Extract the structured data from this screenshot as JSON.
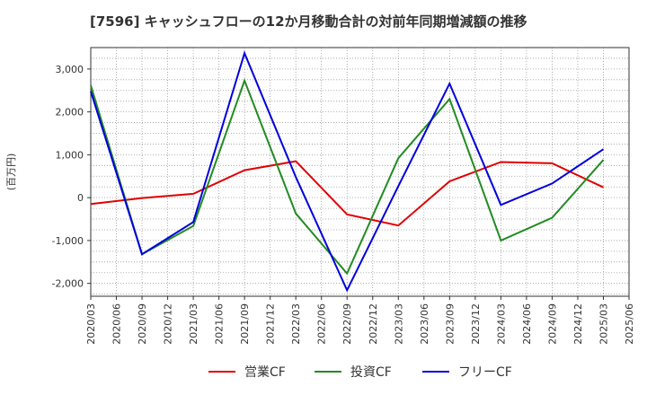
{
  "chart_data": {
    "type": "line",
    "title": "[7596]  キャッシュフローの12か月移動合計の対前年同期増減額の推移",
    "ylabel": "(百万円)",
    "xlabel": "",
    "ylim": [
      -2300,
      3500
    ],
    "yticks": [
      -2000,
      -1000,
      0,
      1000,
      2000,
      3000
    ],
    "ytick_labels": [
      "-2,000",
      "-1,000",
      "0",
      "1,000",
      "2,000",
      "3,000"
    ],
    "categories": [
      "2020/03",
      "2020/06",
      "2020/09",
      "2020/12",
      "2021/03",
      "2021/06",
      "2021/09",
      "2021/12",
      "2022/03",
      "2022/06",
      "2022/09",
      "2022/12",
      "2023/03",
      "2023/06",
      "2023/09",
      "2023/12",
      "2024/03",
      "2024/06",
      "2024/09",
      "2024/12",
      "2025/03",
      "2025/06"
    ],
    "grid": true,
    "legend_position": "bottom",
    "series": [
      {
        "name": "営業CF",
        "color": "#e00000",
        "points": [
          {
            "x": "2020/03",
            "y": -150
          },
          {
            "x": "2020/09",
            "y": -10
          },
          {
            "x": "2021/03",
            "y": 90
          },
          {
            "x": "2021/09",
            "y": 640
          },
          {
            "x": "2022/03",
            "y": 850
          },
          {
            "x": "2022/09",
            "y": -390
          },
          {
            "x": "2023/03",
            "y": -650
          },
          {
            "x": "2023/09",
            "y": 380
          },
          {
            "x": "2024/03",
            "y": 830
          },
          {
            "x": "2024/09",
            "y": 800
          },
          {
            "x": "2025/03",
            "y": 240
          }
        ]
      },
      {
        "name": "投資CF",
        "color": "#228b22",
        "points": [
          {
            "x": "2020/03",
            "y": 2620
          },
          {
            "x": "2020/09",
            "y": -1320
          },
          {
            "x": "2021/03",
            "y": -660
          },
          {
            "x": "2021/09",
            "y": 2730
          },
          {
            "x": "2022/03",
            "y": -370
          },
          {
            "x": "2022/09",
            "y": -1770
          },
          {
            "x": "2023/03",
            "y": 920
          },
          {
            "x": "2023/09",
            "y": 2300
          },
          {
            "x": "2024/03",
            "y": -1000
          },
          {
            "x": "2024/09",
            "y": -470
          },
          {
            "x": "2025/03",
            "y": 880
          }
        ]
      },
      {
        "name": "フリーCF",
        "color": "#0000dd",
        "points": [
          {
            "x": "2020/03",
            "y": 2480
          },
          {
            "x": "2020/09",
            "y": -1320
          },
          {
            "x": "2021/03",
            "y": -570
          },
          {
            "x": "2021/09",
            "y": 3370
          },
          {
            "x": "2022/03",
            "y": 480
          },
          {
            "x": "2022/09",
            "y": -2160
          },
          {
            "x": "2023/03",
            "y": 270
          },
          {
            "x": "2023/09",
            "y": 2660
          },
          {
            "x": "2024/03",
            "y": -170
          },
          {
            "x": "2024/09",
            "y": 330
          },
          {
            "x": "2025/03",
            "y": 1130
          }
        ]
      }
    ]
  }
}
